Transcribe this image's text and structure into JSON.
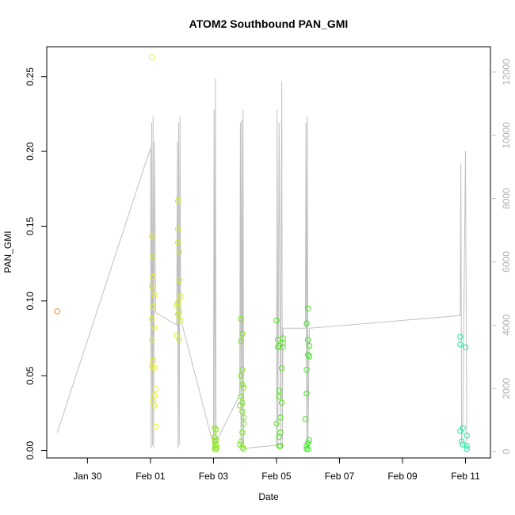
{
  "chart_data": {
    "type": "scatter",
    "title": "ATOM2 Southbound PAN_GMI",
    "xlabel": "Date",
    "ylabel": "PAN_GMI",
    "x_axis": {
      "type": "date",
      "range": [
        "2017-01-28T17:00",
        "2017-02-11T19:00"
      ],
      "ticks": [
        "2017-01-30",
        "2017-02-01",
        "2017-02-03",
        "2017-02-05",
        "2017-02-07",
        "2017-02-09",
        "2017-02-11"
      ],
      "tick_labels": [
        "Jan 30",
        "Feb 01",
        "Feb 03",
        "Feb 05",
        "Feb 07",
        "Feb 09",
        "Feb 11"
      ]
    },
    "y_axis": {
      "range": [
        -0.005,
        0.27
      ],
      "ticks": [
        0.0,
        0.05,
        0.1,
        0.15,
        0.2,
        0.25
      ],
      "tick_labels": [
        "0.00",
        "0.05",
        "0.10",
        "0.15",
        "0.20",
        "0.25"
      ]
    },
    "y2_axis": {
      "range": [
        -200,
        12800
      ],
      "ticks": [
        0,
        2000,
        4000,
        6000,
        8000,
        10000,
        12000
      ],
      "tick_labels": [
        "0",
        "2000",
        "4000",
        "6000",
        "8000",
        "10000",
        "12000"
      ],
      "color": "#c0c0c0"
    },
    "grid": false,
    "legend": "none",
    "points": [
      {
        "x": "2017-01-29T01:00",
        "y": 0.093,
        "color": "#f08c1e"
      },
      {
        "x": "2017-02-01T01:00",
        "y": 0.263,
        "color": "#e8f01e"
      },
      {
        "x": "2017-02-01T01:00",
        "y": 0.143,
        "color": "#e8f01e"
      },
      {
        "x": "2017-02-01T02:00",
        "y": 0.13,
        "color": "#e8f01e"
      },
      {
        "x": "2017-02-01T02:00",
        "y": 0.116,
        "color": "#e8f01e"
      },
      {
        "x": "2017-02-01T01:00",
        "y": 0.11,
        "color": "#e8f01e"
      },
      {
        "x": "2017-02-01T03:00",
        "y": 0.104,
        "color": "#e8f01e"
      },
      {
        "x": "2017-02-01T02:00",
        "y": 0.096,
        "color": "#e8f01e"
      },
      {
        "x": "2017-02-01T01:00",
        "y": 0.088,
        "color": "#e8f01e"
      },
      {
        "x": "2017-02-01T03:00",
        "y": 0.082,
        "color": "#e8f01e"
      },
      {
        "x": "2017-02-01T01:00",
        "y": 0.074,
        "color": "#e8f01e"
      },
      {
        "x": "2017-02-01T02:00",
        "y": 0.06,
        "color": "#e8f01e"
      },
      {
        "x": "2017-02-01T01:00",
        "y": 0.056,
        "color": "#e8f01e"
      },
      {
        "x": "2017-02-01T03:00",
        "y": 0.055,
        "color": "#e8f01e"
      },
      {
        "x": "2017-02-01T04:00",
        "y": 0.041,
        "color": "#e8f01e"
      },
      {
        "x": "2017-02-01T03:00",
        "y": 0.037,
        "color": "#e8f01e"
      },
      {
        "x": "2017-02-01T02:00",
        "y": 0.033,
        "color": "#e8f01e"
      },
      {
        "x": "2017-02-01T03:00",
        "y": 0.03,
        "color": "#e8f01e"
      },
      {
        "x": "2017-02-01T04:00",
        "y": 0.016,
        "color": "#e8f01e"
      },
      {
        "x": "2017-02-01T21:00",
        "y": 0.167,
        "color": "#d2f01e"
      },
      {
        "x": "2017-02-01T21:00",
        "y": 0.148,
        "color": "#d2f01e"
      },
      {
        "x": "2017-02-01T21:00",
        "y": 0.139,
        "color": "#d2f01e"
      },
      {
        "x": "2017-02-01T22:00",
        "y": 0.133,
        "color": "#d2f01e"
      },
      {
        "x": "2017-02-01T22:00",
        "y": 0.114,
        "color": "#d2f01e"
      },
      {
        "x": "2017-02-01T23:00",
        "y": 0.103,
        "color": "#d2f01e"
      },
      {
        "x": "2017-02-01T21:00",
        "y": 0.099,
        "color": "#d2f01e"
      },
      {
        "x": "2017-02-01T20:00",
        "y": 0.097,
        "color": "#d2f01e"
      },
      {
        "x": "2017-02-01T22:00",
        "y": 0.093,
        "color": "#d2f01e"
      },
      {
        "x": "2017-02-01T21:00",
        "y": 0.091,
        "color": "#d2f01e"
      },
      {
        "x": "2017-02-01T23:00",
        "y": 0.087,
        "color": "#d2f01e"
      },
      {
        "x": "2017-02-01T20:00",
        "y": 0.077,
        "color": "#d2f01e"
      },
      {
        "x": "2017-02-01T22:00",
        "y": 0.074,
        "color": "#d2f01e"
      },
      {
        "x": "2017-02-03T01:00",
        "y": 0.015,
        "color": "#8ce61e"
      },
      {
        "x": "2017-02-03T02:00",
        "y": 0.014,
        "color": "#8ce61e"
      },
      {
        "x": "2017-02-03T01:00",
        "y": 0.009,
        "color": "#8ce61e"
      },
      {
        "x": "2017-02-03T02:00",
        "y": 0.007,
        "color": "#8ce61e"
      },
      {
        "x": "2017-02-03T01:00",
        "y": 0.006,
        "color": "#8ce61e"
      },
      {
        "x": "2017-02-03T02:00",
        "y": 0.004,
        "color": "#8ce61e"
      },
      {
        "x": "2017-02-03T01:00",
        "y": 0.003,
        "color": "#8ce61e"
      },
      {
        "x": "2017-02-03T02:00",
        "y": 0.002,
        "color": "#8ce61e"
      },
      {
        "x": "2017-02-03T01:00",
        "y": 0.001,
        "color": "#8ce61e"
      },
      {
        "x": "2017-02-03T02:00",
        "y": 0.001,
        "color": "#8ce61e"
      },
      {
        "x": "2017-02-03T21:00",
        "y": 0.088,
        "color": "#78e61e"
      },
      {
        "x": "2017-02-03T22:00",
        "y": 0.078,
        "color": "#78e61e"
      },
      {
        "x": "2017-02-03T21:00",
        "y": 0.073,
        "color": "#78e61e"
      },
      {
        "x": "2017-02-03T22:00",
        "y": 0.054,
        "color": "#78e61e"
      },
      {
        "x": "2017-02-03T21:00",
        "y": 0.05,
        "color": "#78e61e"
      },
      {
        "x": "2017-02-03T22:00",
        "y": 0.044,
        "color": "#78e61e"
      },
      {
        "x": "2017-02-03T23:00",
        "y": 0.042,
        "color": "#78e61e"
      },
      {
        "x": "2017-02-03T21:00",
        "y": 0.036,
        "color": "#78e61e"
      },
      {
        "x": "2017-02-03T22:00",
        "y": 0.032,
        "color": "#78e61e"
      },
      {
        "x": "2017-02-03T20:00",
        "y": 0.03,
        "color": "#78e61e"
      },
      {
        "x": "2017-02-03T22:00",
        "y": 0.026,
        "color": "#78e61e"
      },
      {
        "x": "2017-02-03T23:00",
        "y": 0.022,
        "color": "#78e61e"
      },
      {
        "x": "2017-02-03T23:00",
        "y": 0.018,
        "color": "#78e61e"
      },
      {
        "x": "2017-02-03T22:00",
        "y": 0.012,
        "color": "#78e61e"
      },
      {
        "x": "2017-02-03T21:00",
        "y": 0.006,
        "color": "#78e61e"
      },
      {
        "x": "2017-02-03T20:00",
        "y": 0.004,
        "color": "#78e61e"
      },
      {
        "x": "2017-02-03T22:00",
        "y": 0.002,
        "color": "#78e61e"
      },
      {
        "x": "2017-02-03T23:00",
        "y": 0.001,
        "color": "#78e61e"
      },
      {
        "x": "2017-02-05T00:00",
        "y": 0.087,
        "color": "#50e61e"
      },
      {
        "x": "2017-02-05T01:00",
        "y": 0.074,
        "color": "#50e61e"
      },
      {
        "x": "2017-02-05T02:00",
        "y": 0.07,
        "color": "#50e61e"
      },
      {
        "x": "2017-02-05T01:00",
        "y": 0.069,
        "color": "#50e61e"
      },
      {
        "x": "2017-02-05T05:00",
        "y": 0.075,
        "color": "#50e61e"
      },
      {
        "x": "2017-02-05T05:00",
        "y": 0.072,
        "color": "#50e61e"
      },
      {
        "x": "2017-02-05T05:00",
        "y": 0.069,
        "color": "#50e61e"
      },
      {
        "x": "2017-02-05T04:00",
        "y": 0.055,
        "color": "#50e61e"
      },
      {
        "x": "2017-02-05T02:00",
        "y": 0.04,
        "color": "#50e61e"
      },
      {
        "x": "2017-02-05T02:00",
        "y": 0.036,
        "color": "#50e61e"
      },
      {
        "x": "2017-02-05T04:00",
        "y": 0.032,
        "color": "#50e61e"
      },
      {
        "x": "2017-02-05T03:00",
        "y": 0.022,
        "color": "#50e61e"
      },
      {
        "x": "2017-02-05T00:00",
        "y": 0.018,
        "color": "#50e61e"
      },
      {
        "x": "2017-02-05T03:00",
        "y": 0.012,
        "color": "#50e61e"
      },
      {
        "x": "2017-02-05T02:00",
        "y": 0.009,
        "color": "#50e61e"
      },
      {
        "x": "2017-02-05T03:00",
        "y": 0.003,
        "color": "#50e61e"
      },
      {
        "x": "2017-02-05T02:00",
        "y": 0.003,
        "color": "#50e61e"
      },
      {
        "x": "2017-02-06T00:00",
        "y": 0.095,
        "color": "#3ce61e"
      },
      {
        "x": "2017-02-05T23:00",
        "y": 0.085,
        "color": "#3ce61e"
      },
      {
        "x": "2017-02-06T00:00",
        "y": 0.074,
        "color": "#3ce61e"
      },
      {
        "x": "2017-02-06T01:00",
        "y": 0.07,
        "color": "#3ce61e"
      },
      {
        "x": "2017-02-06T00:00",
        "y": 0.064,
        "color": "#3ce61e"
      },
      {
        "x": "2017-02-06T01:00",
        "y": 0.063,
        "color": "#3ce61e"
      },
      {
        "x": "2017-02-05T23:00",
        "y": 0.054,
        "color": "#3ce61e"
      },
      {
        "x": "2017-02-05T23:00",
        "y": 0.038,
        "color": "#3ce61e"
      },
      {
        "x": "2017-02-05T22:00",
        "y": 0.021,
        "color": "#3ce61e"
      },
      {
        "x": "2017-02-06T01:00",
        "y": 0.007,
        "color": "#3ce61e"
      },
      {
        "x": "2017-02-06T00:00",
        "y": 0.005,
        "color": "#3ce61e"
      },
      {
        "x": "2017-02-05T23:00",
        "y": 0.003,
        "color": "#3ce61e"
      },
      {
        "x": "2017-02-06T00:00",
        "y": 0.001,
        "color": "#3ce61e"
      },
      {
        "x": "2017-02-05T23:00",
        "y": 0.001,
        "color": "#3ce61e"
      },
      {
        "x": "2017-02-10T20:00",
        "y": 0.076,
        "color": "#1ee6a5"
      },
      {
        "x": "2017-02-10T20:00",
        "y": 0.071,
        "color": "#1ee6a5"
      },
      {
        "x": "2017-02-11T00:00",
        "y": 0.069,
        "color": "#1ee6a5"
      },
      {
        "x": "2017-02-10T22:00",
        "y": 0.015,
        "color": "#1ee6a5"
      },
      {
        "x": "2017-02-10T20:00",
        "y": 0.013,
        "color": "#1ee6a5"
      },
      {
        "x": "2017-02-11T01:00",
        "y": 0.01,
        "color": "#1ee6a5"
      },
      {
        "x": "2017-02-10T21:00",
        "y": 0.006,
        "color": "#1ee6a5"
      },
      {
        "x": "2017-02-10T22:00",
        "y": 0.004,
        "color": "#1ee6a5"
      },
      {
        "x": "2017-02-11T01:00",
        "y": 0.003,
        "color": "#1ee6a5"
      },
      {
        "x": "2017-02-11T01:00",
        "y": 0.001,
        "color": "#1ee6a5"
      }
    ],
    "secondary_line": {
      "axis": "right",
      "color": "#c0c0c0",
      "x": [
        "2017-01-29T01:00",
        "2017-02-01T00:00",
        "2017-02-01T00:30",
        "2017-02-01T01:00",
        "2017-02-01T01:30",
        "2017-02-01T02:00",
        "2017-02-01T02:30",
        "2017-02-01T03:00",
        "2017-02-01T04:00",
        "2017-02-01T20:00",
        "2017-02-01T20:30",
        "2017-02-01T21:00",
        "2017-02-01T21:30",
        "2017-02-01T22:00",
        "2017-02-01T22:30",
        "2017-02-01T23:00",
        "2017-02-03T00:00",
        "2017-02-03T00:30",
        "2017-02-03T01:00",
        "2017-02-03T01:30",
        "2017-02-03T02:00",
        "2017-02-03T20:00",
        "2017-02-03T20:30",
        "2017-02-03T21:00",
        "2017-02-03T21:30",
        "2017-02-03T22:00",
        "2017-02-03T22:30",
        "2017-02-03T23:00",
        "2017-02-05T00:00",
        "2017-02-05T00:30",
        "2017-02-05T01:00",
        "2017-02-05T02:00",
        "2017-02-05T03:00",
        "2017-02-05T04:00",
        "2017-02-05T04:30",
        "2017-02-05T05:00",
        "2017-02-05T22:00",
        "2017-02-05T22:30",
        "2017-02-05T23:00",
        "2017-02-05T23:30",
        "2017-02-06T00:00",
        "2017-02-06T01:00",
        "2017-02-10T20:00",
        "2017-02-10T20:30",
        "2017-02-10T21:00",
        "2017-02-10T22:00",
        "2017-02-11T00:00",
        "2017-02-11T01:00"
      ],
      "y": [
        600,
        9600,
        100,
        10400,
        200,
        10600,
        100,
        9800,
        4400,
        4000,
        9800,
        100,
        10400,
        200,
        10600,
        4200,
        200,
        10800,
        100,
        11800,
        300,
        1800,
        10400,
        100,
        10500,
        200,
        10800,
        100,
        200,
        10800,
        100,
        10400,
        200,
        11700,
        100,
        3900,
        3900,
        10400,
        200,
        10600,
        100,
        3900,
        4300,
        9100,
        300,
        1000,
        9500,
        100
      ]
    }
  }
}
